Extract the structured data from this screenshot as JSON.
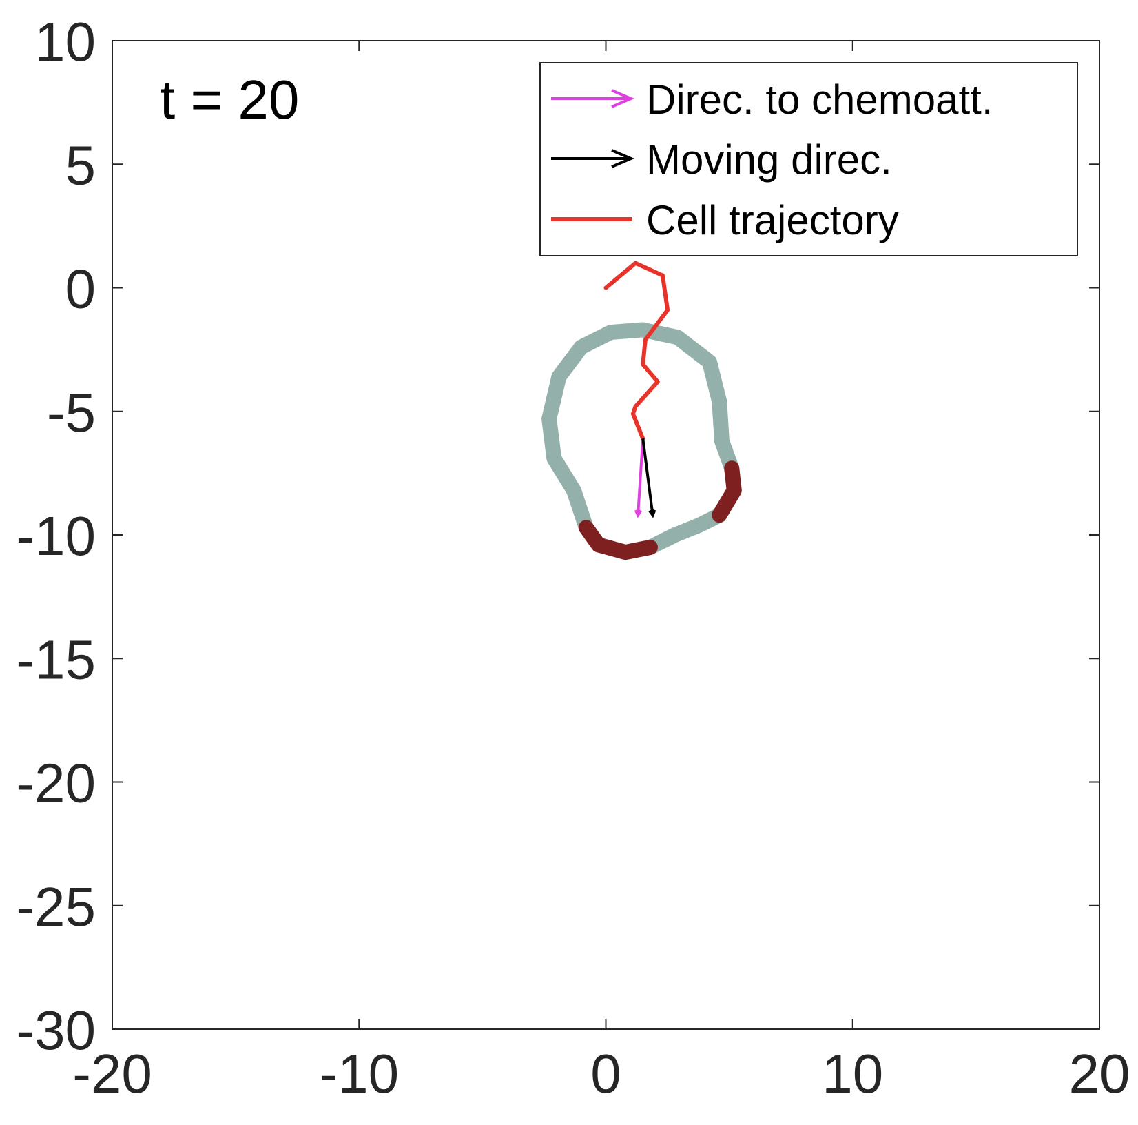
{
  "chart_data": {
    "type": "line",
    "annotation": "t = 20",
    "xlim": [
      -20,
      20
    ],
    "ylim": [
      -30,
      10
    ],
    "xticks": [
      -20,
      -10,
      0,
      10,
      20
    ],
    "yticks": [
      -30,
      -25,
      -20,
      -15,
      -10,
      -5,
      0,
      5,
      10
    ],
    "xtick_labels": [
      "-20",
      "-10",
      "0",
      "10",
      "20"
    ],
    "ytick_labels": [
      "-30",
      "-25",
      "-20",
      "-15",
      "-10",
      "-5",
      "0",
      "5",
      "10"
    ],
    "grid": false,
    "legend_position": "top-right",
    "legend": [
      {
        "label": "Direc. to chemoatt.",
        "color": "#e040e0",
        "marker": "arrow"
      },
      {
        "label": "Moving direc.",
        "color": "#000000",
        "marker": "arrow"
      },
      {
        "label": "Cell trajectory",
        "color": "#e8332a",
        "marker": "line"
      }
    ],
    "trajectory": {
      "name": "Cell trajectory",
      "color": "#e8332a",
      "x": [
        0.0,
        1.2,
        2.3,
        2.5,
        1.6,
        1.5,
        2.1,
        1.2,
        1.1,
        1.5
      ],
      "y": [
        0.0,
        1.0,
        0.5,
        -0.9,
        -2.1,
        -3.1,
        -3.8,
        -4.8,
        -5.1,
        -6.1
      ]
    },
    "cell_outline": {
      "base_color": "#93b0aa",
      "highlight_color": "#7e2020",
      "x": [
        1.5,
        2.9,
        4.2,
        4.6,
        4.7,
        5.1,
        5.2,
        4.6,
        3.8,
        2.8,
        1.8,
        0.8,
        -0.3,
        -0.8,
        -1.3,
        -2.1,
        -2.3,
        -1.9,
        -1.0,
        0.2,
        1.5
      ],
      "y": [
        -1.7,
        -2.0,
        -3.0,
        -4.6,
        -6.2,
        -7.3,
        -8.2,
        -9.2,
        -9.6,
        -10.0,
        -10.5,
        -10.7,
        -10.4,
        -9.7,
        -8.2,
        -6.9,
        -5.3,
        -3.6,
        -2.4,
        -1.8,
        -1.7
      ],
      "highlight_ranges": [
        [
          5,
          7
        ],
        [
          10,
          13
        ]
      ]
    },
    "arrows": [
      {
        "name": "Direc. to chemoatt.",
        "color": "#e040e0",
        "x0": 1.5,
        "y0": -6.1,
        "x1": 1.3,
        "y1": -9.2
      },
      {
        "name": "Moving direc.",
        "color": "#000000",
        "x0": 1.5,
        "y0": -6.1,
        "x1": 1.9,
        "y1": -9.2
      }
    ]
  }
}
